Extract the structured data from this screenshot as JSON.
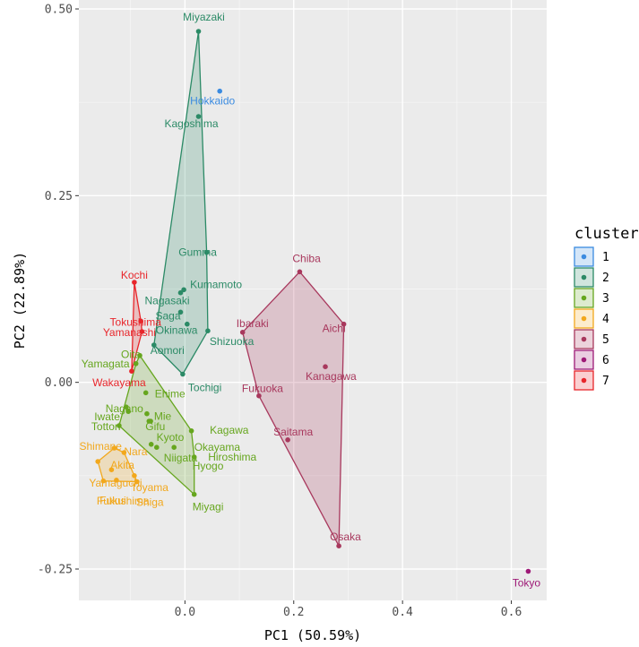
{
  "chart_data": {
    "type": "scatter",
    "title": "",
    "xlabel": "PC1 (50.59%)",
    "ylabel": "PC2 (22.89%)",
    "xlim": [
      -0.195,
      0.665
    ],
    "ylim": [
      -0.292,
      0.512
    ],
    "x_ticks": [
      0.0,
      0.2,
      0.4,
      0.6
    ],
    "x_tick_labels": [
      "0.0",
      "0.2",
      "0.4",
      "0.6"
    ],
    "y_ticks": [
      -0.25,
      0.0,
      0.25,
      0.5
    ],
    "y_tick_labels": [
      "-0.25",
      "0.00",
      "0.25",
      "0.50"
    ],
    "grid": true,
    "legend": {
      "title": "cluster",
      "position": "right"
    },
    "clusters": [
      {
        "name": "1",
        "color": "#3b8be0"
      },
      {
        "name": "2",
        "color": "#2b8a66"
      },
      {
        "name": "3",
        "color": "#66a61e"
      },
      {
        "name": "4",
        "color": "#f2a81d"
      },
      {
        "name": "5",
        "color": "#a8385d"
      },
      {
        "name": "6",
        "color": "#9e1a77"
      },
      {
        "name": "7",
        "color": "#e8262b"
      }
    ],
    "points": [
      {
        "name": "Hokkaido",
        "cluster": "1",
        "x": 0.064,
        "y": 0.39
      },
      {
        "name": "Miyazaki",
        "cluster": "2",
        "x": 0.025,
        "y": 0.47
      },
      {
        "name": "Kagoshima",
        "cluster": "2",
        "x": 0.025,
        "y": 0.356
      },
      {
        "name": "Gumma",
        "cluster": "2",
        "x": 0.04,
        "y": 0.174
      },
      {
        "name": "Kumamoto",
        "cluster": "2",
        "x": -0.002,
        "y": 0.124
      },
      {
        "name": "Nagasaki",
        "cluster": "2",
        "x": -0.008,
        "y": 0.12
      },
      {
        "name": "Saga",
        "cluster": "2",
        "x": -0.008,
        "y": 0.094
      },
      {
        "name": "Okinawa",
        "cluster": "2",
        "x": 0.004,
        "y": 0.078
      },
      {
        "name": "Shizuoka",
        "cluster": "2",
        "x": 0.042,
        "y": 0.069
      },
      {
        "name": "Aomori",
        "cluster": "2",
        "x": -0.057,
        "y": 0.05
      },
      {
        "name": "Tochigi",
        "cluster": "2",
        "x": -0.004,
        "y": 0.011
      },
      {
        "name": "Oita",
        "cluster": "3",
        "x": -0.083,
        "y": 0.036
      },
      {
        "name": "Yamagata",
        "cluster": "3",
        "x": -0.09,
        "y": 0.025
      },
      {
        "name": "Nagano",
        "cluster": "3",
        "x": -0.108,
        "y": -0.033
      },
      {
        "name": "Ehime",
        "cluster": "3",
        "x": -0.072,
        "y": -0.014
      },
      {
        "name": "Iwate",
        "cluster": "3",
        "x": -0.104,
        "y": -0.039
      },
      {
        "name": "Mie",
        "cluster": "3",
        "x": -0.07,
        "y": -0.042
      },
      {
        "name": "Kagawa",
        "cluster": "3",
        "x": -0.063,
        "y": -0.052
      },
      {
        "name": "Tottori",
        "cluster": "3",
        "x": -0.121,
        "y": -0.058
      },
      {
        "name": "Gifu",
        "cluster": "3",
        "x": -0.066,
        "y": -0.052
      },
      {
        "name": "Kyoto",
        "cluster": "3",
        "x": 0.012,
        "y": -0.065
      },
      {
        "name": "Okayama",
        "cluster": "3",
        "x": -0.062,
        "y": -0.083
      },
      {
        "name": "Hiroshima",
        "cluster": "3",
        "x": -0.02,
        "y": -0.087
      },
      {
        "name": "Hyogo",
        "cluster": "3",
        "x": 0.017,
        "y": -0.1
      },
      {
        "name": "Niigata",
        "cluster": "3",
        "x": -0.052,
        "y": -0.087
      },
      {
        "name": "Miyagi",
        "cluster": "3",
        "x": 0.017,
        "y": -0.15
      },
      {
        "name": "Shimane",
        "cluster": "4",
        "x": -0.13,
        "y": -0.088
      },
      {
        "name": "Nara",
        "cluster": "4",
        "x": -0.112,
        "y": -0.094
      },
      {
        "name": "Akita",
        "cluster": "4",
        "x": -0.16,
        "y": -0.106
      },
      {
        "name": "Toyama",
        "cluster": "4",
        "x": -0.093,
        "y": -0.125
      },
      {
        "name": "Yamaguchi",
        "cluster": "4",
        "x": -0.135,
        "y": -0.117
      },
      {
        "name": "Fukushima",
        "cluster": "4",
        "x": -0.126,
        "y": -0.131
      },
      {
        "name": "Fukui",
        "cluster": "4",
        "x": -0.15,
        "y": -0.132
      },
      {
        "name": "Shiga",
        "cluster": "4",
        "x": -0.088,
        "y": -0.133
      },
      {
        "name": "Chiba",
        "cluster": "5",
        "x": 0.211,
        "y": 0.148
      },
      {
        "name": "Ibaraki",
        "cluster": "5",
        "x": 0.106,
        "y": 0.067
      },
      {
        "name": "Aichi",
        "cluster": "5",
        "x": 0.292,
        "y": 0.078
      },
      {
        "name": "Kanagawa",
        "cluster": "5",
        "x": 0.258,
        "y": 0.021
      },
      {
        "name": "Fukuoka",
        "cluster": "5",
        "x": 0.136,
        "y": -0.018
      },
      {
        "name": "Saitama",
        "cluster": "5",
        "x": 0.189,
        "y": -0.077
      },
      {
        "name": "Osaka",
        "cluster": "5",
        "x": 0.283,
        "y": -0.219
      },
      {
        "name": "Tokyo",
        "cluster": "6",
        "x": 0.631,
        "y": -0.253
      },
      {
        "name": "Kochi",
        "cluster": "7",
        "x": -0.093,
        "y": 0.134
      },
      {
        "name": "Tokushima",
        "cluster": "7",
        "x": -0.081,
        "y": 0.082
      },
      {
        "name": "Yamanashi",
        "cluster": "7",
        "x": -0.079,
        "y": 0.068
      },
      {
        "name": "Wakayama",
        "cluster": "7",
        "x": -0.098,
        "y": 0.015
      }
    ]
  }
}
